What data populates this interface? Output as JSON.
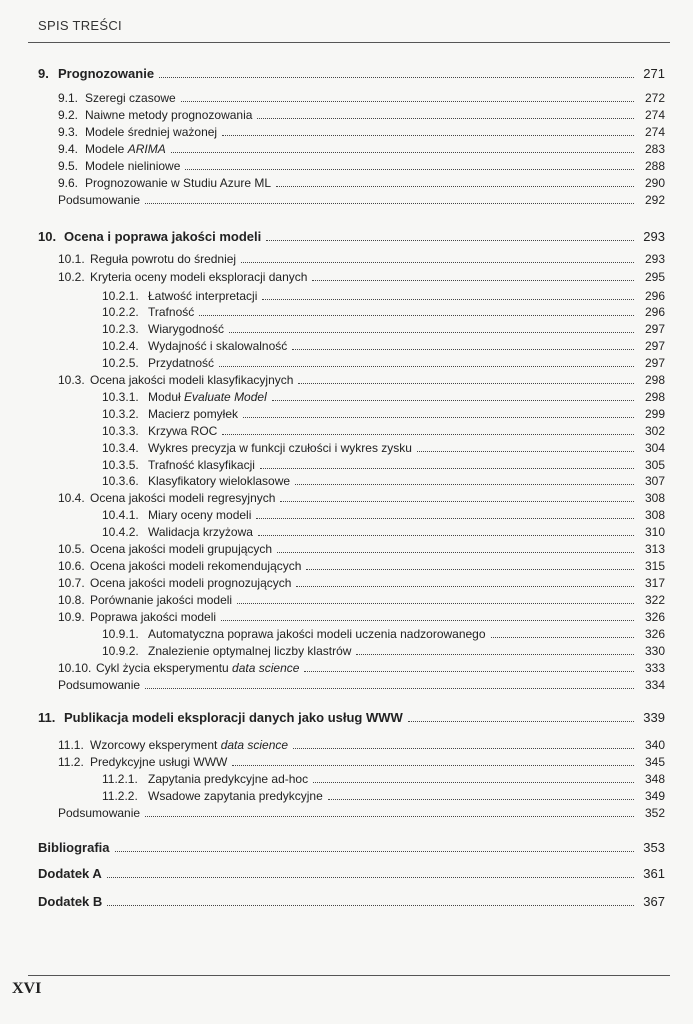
{
  "header": {
    "running_head": "SPIS TREŚCI"
  },
  "footer": {
    "folio": "XVI"
  },
  "entries": [
    {
      "level": 0,
      "bold": true,
      "number": "9.",
      "title": [
        {
          "t": "Prognozowanie"
        }
      ],
      "page": "271"
    },
    {
      "level": 1,
      "number": "9.1.",
      "title": [
        {
          "t": "Szeregi czasowe"
        }
      ],
      "page": "272"
    },
    {
      "level": 1,
      "number": "9.2.",
      "title": [
        {
          "t": "Naiwne metody prognozowania"
        }
      ],
      "page": "274"
    },
    {
      "level": 1,
      "number": "9.3.",
      "title": [
        {
          "t": "Modele średniej ważonej"
        }
      ],
      "page": "274"
    },
    {
      "level": 1,
      "number": "9.4.",
      "title": [
        {
          "t": "Modele "
        },
        {
          "t": "ARIMA",
          "i": true
        }
      ],
      "page": "283"
    },
    {
      "level": 1,
      "number": "9.5.",
      "title": [
        {
          "t": "Modele nieliniowe"
        }
      ],
      "page": "288"
    },
    {
      "level": 1,
      "number": "9.6.",
      "title": [
        {
          "t": "Prognozowanie w Studiu Azure ML"
        }
      ],
      "page": "290"
    },
    {
      "level": 1,
      "number": "",
      "title": [
        {
          "t": "Podsumowanie"
        }
      ],
      "page": "292"
    },
    {
      "level": 0,
      "bold": true,
      "number": "10.",
      "title": [
        {
          "t": "Ocena i poprawa jakości modeli"
        }
      ],
      "page": "293"
    },
    {
      "level": 1,
      "number": "10.1.",
      "title": [
        {
          "t": "Reguła powrotu do średniej"
        }
      ],
      "page": "293"
    },
    {
      "level": 1,
      "number": "10.2.",
      "title": [
        {
          "t": "Kryteria oceny modeli eksploracji danych"
        }
      ],
      "page": "295"
    },
    {
      "level": 2,
      "number": "10.2.1.",
      "title": [
        {
          "t": "Łatwość interpretacji"
        }
      ],
      "page": "296"
    },
    {
      "level": 2,
      "number": "10.2.2.",
      "title": [
        {
          "t": "Trafność"
        }
      ],
      "page": "296"
    },
    {
      "level": 2,
      "number": "10.2.3.",
      "title": [
        {
          "t": "Wiarygodność"
        }
      ],
      "page": "297"
    },
    {
      "level": 2,
      "number": "10.2.4.",
      "title": [
        {
          "t": "Wydajność i skalowalność"
        }
      ],
      "page": "297"
    },
    {
      "level": 2,
      "number": "10.2.5.",
      "title": [
        {
          "t": "Przydatność"
        }
      ],
      "page": "297"
    },
    {
      "level": 1,
      "number": "10.3.",
      "title": [
        {
          "t": "Ocena jakości modeli klasyfikacyjnych"
        }
      ],
      "page": "298"
    },
    {
      "level": 2,
      "number": "10.3.1.",
      "title": [
        {
          "t": "Moduł "
        },
        {
          "t": "Evaluate Model",
          "i": true
        }
      ],
      "page": "298"
    },
    {
      "level": 2,
      "number": "10.3.2.",
      "title": [
        {
          "t": "Macierz pomyłek"
        }
      ],
      "page": "299"
    },
    {
      "level": 2,
      "number": "10.3.3.",
      "title": [
        {
          "t": "Krzywa ROC"
        }
      ],
      "page": "302"
    },
    {
      "level": 2,
      "number": "10.3.4.",
      "title": [
        {
          "t": "Wykres precyzja w funkcji czułości i wykres zysku"
        }
      ],
      "page": "304"
    },
    {
      "level": 2,
      "number": "10.3.5.",
      "title": [
        {
          "t": "Trafność klasyfikacji"
        }
      ],
      "page": "305"
    },
    {
      "level": 2,
      "number": "10.3.6.",
      "title": [
        {
          "t": "Klasyfikatory wieloklasowe"
        }
      ],
      "page": "307"
    },
    {
      "level": 1,
      "number": "10.4.",
      "title": [
        {
          "t": "Ocena jakości modeli regresyjnych"
        }
      ],
      "page": "308"
    },
    {
      "level": 2,
      "number": "10.4.1.",
      "title": [
        {
          "t": "Miary oceny modeli"
        }
      ],
      "page": "308"
    },
    {
      "level": 2,
      "number": "10.4.2.",
      "title": [
        {
          "t": "Walidacja krzyżowa"
        }
      ],
      "page": "310"
    },
    {
      "level": 1,
      "number": "10.5.",
      "title": [
        {
          "t": "Ocena jakości modeli grupujących"
        }
      ],
      "page": "313"
    },
    {
      "level": 1,
      "number": "10.6.",
      "title": [
        {
          "t": "Ocena jakości modeli rekomendujących"
        }
      ],
      "page": "315"
    },
    {
      "level": 1,
      "number": "10.7.",
      "title": [
        {
          "t": "Ocena jakości modeli prognozujących"
        }
      ],
      "page": "317"
    },
    {
      "level": 1,
      "number": "10.8.",
      "title": [
        {
          "t": "Porównanie jakości modeli"
        }
      ],
      "page": "322"
    },
    {
      "level": 1,
      "number": "10.9.",
      "title": [
        {
          "t": "Poprawa jakości modeli"
        }
      ],
      "page": "326"
    },
    {
      "level": 2,
      "number": "10.9.1.",
      "title": [
        {
          "t": "Automatyczna poprawa jakości modeli uczenia nadzorowanego"
        }
      ],
      "page": "326"
    },
    {
      "level": 2,
      "number": "10.9.2.",
      "title": [
        {
          "t": "Znalezienie optymalnej liczby klastrów"
        }
      ],
      "page": "330"
    },
    {
      "level": 1,
      "number": "10.10.",
      "title": [
        {
          "t": "Cykl życia eksperymentu "
        },
        {
          "t": "data science",
          "i": true
        }
      ],
      "page": "333"
    },
    {
      "level": 1,
      "number": "",
      "title": [
        {
          "t": "Podsumowanie"
        }
      ],
      "page": "334"
    },
    {
      "level": 0,
      "bold": true,
      "number": "11.",
      "title": [
        {
          "t": "Publikacja modeli eksploracji danych jako usług WWW"
        }
      ],
      "page": "339"
    },
    {
      "level": 1,
      "number": "11.1.",
      "title": [
        {
          "t": "Wzorcowy eksperyment "
        },
        {
          "t": "data science",
          "i": true
        }
      ],
      "page": "340"
    },
    {
      "level": 1,
      "number": "11.2.",
      "title": [
        {
          "t": "Predykcyjne usługi WWW"
        }
      ],
      "page": "345"
    },
    {
      "level": 2,
      "number": "11.2.1.",
      "title": [
        {
          "t": "Zapytania predykcyjne ad-hoc"
        }
      ],
      "page": "348"
    },
    {
      "level": 2,
      "number": "11.2.2.",
      "title": [
        {
          "t": "Wsadowe zapytania predykcyjne"
        }
      ],
      "page": "349"
    },
    {
      "level": 1,
      "number": "",
      "title": [
        {
          "t": "Podsumowanie"
        }
      ],
      "page": "352"
    },
    {
      "level": 0,
      "bold": true,
      "number": "",
      "title": [
        {
          "t": "Bibliografia"
        }
      ],
      "page": "353"
    },
    {
      "level": 0,
      "bold": true,
      "number": "",
      "title": [
        {
          "t": "Dodatek A"
        }
      ],
      "page": "361"
    },
    {
      "level": 0,
      "bold": true,
      "number": "",
      "title": [
        {
          "t": "Dodatek B"
        }
      ],
      "page": "367"
    }
  ]
}
